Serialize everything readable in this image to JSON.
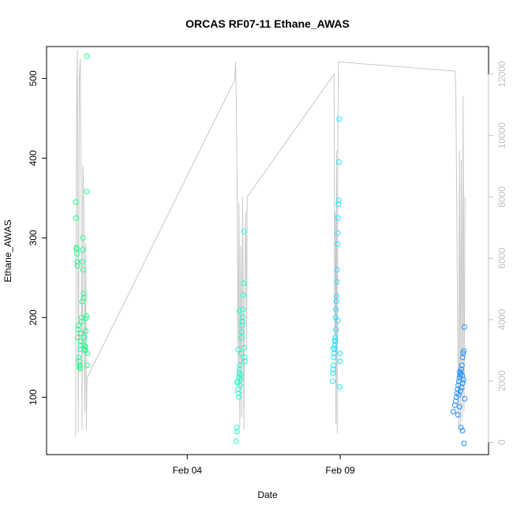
{
  "chart_data": {
    "type": "scatter",
    "title": "ORCAS RF07-11 Ethane_AWAS",
    "xlabel": "Date",
    "ylabel": "Ethane_AWAS",
    "x_ticks": [
      {
        "label": "Feb 04",
        "day": 4.0
      },
      {
        "label": "Feb 09",
        "day": 9.0
      }
    ],
    "xlim_day": [
      -0.6,
      13.85
    ],
    "ylim": [
      28,
      540
    ],
    "y_ticks": [
      100,
      200,
      300,
      400,
      500
    ],
    "y2lim": [
      -400,
      12900
    ],
    "y2_ticks": [
      0,
      2000,
      4000,
      6000,
      8000,
      10000,
      12000
    ],
    "grid": false,
    "secondary_series": {
      "color": "#c8c8c8",
      "points": [
        [
          0.35,
          200
        ],
        [
          0.38,
          10500
        ],
        [
          0.41,
          12800
        ],
        [
          0.44,
          300
        ],
        [
          0.47,
          11800
        ],
        [
          0.5,
          12500
        ],
        [
          0.53,
          9000
        ],
        [
          0.56,
          400
        ],
        [
          0.59,
          9000
        ],
        [
          0.62,
          7500
        ],
        [
          0.65,
          1000
        ],
        [
          0.68,
          6500
        ],
        [
          0.7,
          400
        ],
        [
          0.72,
          2100
        ],
        [
          5.55,
          11800
        ],
        [
          5.58,
          12400
        ],
        [
          5.6,
          11200
        ],
        [
          5.63,
          8800
        ],
        [
          5.66,
          1800
        ],
        [
          5.69,
          7800
        ],
        [
          5.72,
          500
        ],
        [
          5.75,
          6400
        ],
        [
          5.78,
          800
        ],
        [
          5.81,
          8000
        ],
        [
          5.85,
          400
        ],
        [
          5.88,
          5200
        ],
        [
          5.91,
          7500
        ],
        [
          5.94,
          3000
        ],
        [
          5.96,
          8000
        ],
        [
          8.8,
          12000
        ],
        [
          8.82,
          3500
        ],
        [
          8.84,
          7500
        ],
        [
          8.86,
          600
        ],
        [
          8.88,
          9500
        ],
        [
          8.9,
          300
        ],
        [
          8.92,
          8000
        ],
        [
          8.94,
          12400
        ],
        [
          12.75,
          12100
        ],
        [
          12.78,
          11600
        ],
        [
          12.81,
          7800
        ],
        [
          12.84,
          3600
        ],
        [
          12.87,
          500
        ],
        [
          12.9,
          9500
        ],
        [
          12.93,
          300
        ],
        [
          12.96,
          9200
        ],
        [
          12.99,
          700
        ],
        [
          13.02,
          11300
        ],
        [
          13.05,
          1000
        ],
        [
          13.08,
          8000
        ]
      ]
    },
    "series": [
      {
        "color": "#1eff8a",
        "points": [
          [
            0.35,
            345
          ],
          [
            0.36,
            325
          ],
          [
            0.37,
            286
          ],
          [
            0.38,
            288
          ],
          [
            0.39,
            280
          ],
          [
            0.4,
            270
          ],
          [
            0.41,
            265
          ],
          [
            0.42,
            175
          ],
          [
            0.43,
            185
          ],
          [
            0.44,
            190
          ],
          [
            0.45,
            150
          ],
          [
            0.46,
            145
          ],
          [
            0.47,
            140
          ],
          [
            0.48,
            136
          ],
          [
            0.49,
            138
          ],
          [
            0.5,
            160
          ],
          [
            0.51,
            165
          ],
          [
            0.52,
            170
          ],
          [
            0.53,
            180
          ],
          [
            0.54,
            200
          ],
          [
            0.55,
            195
          ],
          [
            0.56,
            220
          ],
          [
            0.57,
            270
          ],
          [
            0.58,
            285
          ],
          [
            0.59,
            300
          ],
          [
            0.6,
            260
          ],
          [
            0.61,
            230
          ],
          [
            0.62,
            225
          ],
          [
            0.63,
            175
          ],
          [
            0.64,
            165
          ],
          [
            0.65,
            160
          ],
          [
            0.66,
            158
          ],
          [
            0.67,
            163
          ],
          [
            0.68,
            183
          ],
          [
            0.69,
            199
          ],
          [
            0.7,
            202
          ],
          [
            0.71,
            358
          ],
          [
            0.72,
            528
          ],
          [
            0.73,
            140
          ],
          [
            0.74,
            155
          ]
        ]
      },
      {
        "color": "#1effcd",
        "points": [
          [
            5.6,
            45
          ],
          [
            5.62,
            62
          ],
          [
            5.63,
            57
          ],
          [
            5.64,
            120
          ],
          [
            5.65,
            118
          ],
          [
            5.66,
            110
          ],
          [
            5.67,
            105
          ],
          [
            5.68,
            100
          ],
          [
            5.69,
            125
          ],
          [
            5.7,
            130
          ],
          [
            5.71,
            135
          ],
          [
            5.72,
            140
          ],
          [
            5.73,
            115
          ],
          [
            5.74,
            122
          ],
          [
            5.75,
            128
          ],
          [
            5.76,
            155
          ],
          [
            5.77,
            175
          ],
          [
            5.78,
            182
          ],
          [
            5.79,
            190
          ],
          [
            5.8,
            195
          ],
          [
            5.81,
            200
          ],
          [
            5.82,
            210
          ],
          [
            5.83,
            228
          ],
          [
            5.84,
            243
          ],
          [
            5.85,
            308
          ],
          [
            5.86,
            162
          ],
          [
            5.87,
            150
          ],
          [
            5.88,
            145
          ],
          [
            5.7,
            208
          ],
          [
            5.66,
            160
          ]
        ]
      },
      {
        "color": "#1ee6ff",
        "points": [
          [
            8.75,
            120
          ],
          [
            8.76,
            130
          ],
          [
            8.77,
            135
          ],
          [
            8.78,
            140
          ],
          [
            8.79,
            150
          ],
          [
            8.8,
            155
          ],
          [
            8.81,
            160
          ],
          [
            8.82,
            165
          ],
          [
            8.83,
            170
          ],
          [
            8.84,
            175
          ],
          [
            8.85,
            200
          ],
          [
            8.86,
            210
          ],
          [
            8.87,
            220
          ],
          [
            8.88,
            227
          ],
          [
            8.89,
            245
          ],
          [
            8.9,
            260
          ],
          [
            8.91,
            292
          ],
          [
            8.92,
            306
          ],
          [
            8.93,
            325
          ],
          [
            8.94,
            342
          ],
          [
            8.95,
            347
          ],
          [
            8.96,
            395
          ],
          [
            8.97,
            449
          ],
          [
            8.98,
            113
          ],
          [
            8.99,
            145
          ],
          [
            9.0,
            155
          ],
          [
            8.78,
            162
          ],
          [
            8.82,
            172
          ],
          [
            8.86,
            185
          ],
          [
            8.92,
            196
          ]
        ]
      },
      {
        "color": "#1e90ff",
        "points": [
          [
            12.7,
            82
          ],
          [
            12.75,
            90
          ],
          [
            12.78,
            95
          ],
          [
            12.8,
            100
          ],
          [
            12.82,
            105
          ],
          [
            12.84,
            110
          ],
          [
            12.86,
            115
          ],
          [
            12.88,
            120
          ],
          [
            12.9,
            125
          ],
          [
            12.92,
            128
          ],
          [
            12.94,
            130
          ],
          [
            12.96,
            135
          ],
          [
            12.98,
            140
          ],
          [
            13.0,
            150
          ],
          [
            13.02,
            155
          ],
          [
            13.04,
            158
          ],
          [
            13.06,
            188
          ],
          [
            12.85,
            78
          ],
          [
            12.9,
            88
          ],
          [
            12.95,
            62
          ],
          [
            13.0,
            58
          ],
          [
            13.05,
            42
          ],
          [
            12.88,
            103
          ],
          [
            12.93,
            108
          ],
          [
            12.97,
            112
          ],
          [
            13.01,
            118
          ],
          [
            13.03,
            122
          ],
          [
            12.99,
            127
          ],
          [
            12.91,
            132
          ],
          [
            13.07,
            98
          ]
        ]
      }
    ]
  }
}
